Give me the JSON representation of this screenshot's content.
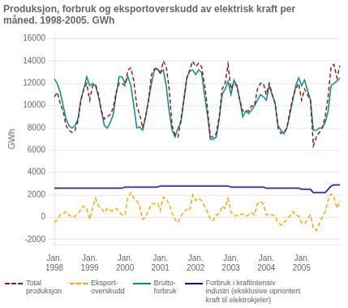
{
  "chart_data": {
    "type": "line",
    "title": "Produksjon, forbruk og eksportoverskudd av elektrisk kraft per\nmåned. 1998-2005. GWh",
    "ylabel": "GWh",
    "categories": [
      "Jan.\n1998",
      null,
      null,
      null,
      null,
      null,
      null,
      null,
      null,
      null,
      null,
      null,
      "Jan.\n1999",
      null,
      null,
      null,
      null,
      null,
      null,
      null,
      null,
      null,
      null,
      null,
      "Jan.\n2000",
      null,
      null,
      null,
      null,
      null,
      null,
      null,
      null,
      null,
      null,
      null,
      "Jan.\n2001",
      null,
      null,
      null,
      null,
      null,
      null,
      null,
      null,
      null,
      null,
      null,
      "Jan.\n2002",
      null,
      null,
      null,
      null,
      null,
      null,
      null,
      null,
      null,
      null,
      null,
      "Jan.\n2003",
      null,
      null,
      null,
      null,
      null,
      null,
      null,
      null,
      null,
      null,
      null,
      "Jan.\n2004",
      null,
      null,
      null,
      null,
      null,
      null,
      null,
      null,
      null,
      null,
      null,
      "Jan.\n2005",
      null,
      null,
      null,
      null,
      null,
      null,
      null,
      null,
      null,
      null,
      null,
      null,
      null
    ],
    "series": [
      {
        "name": "Total\nproduksjon",
        "color": "#8B1A1A",
        "line_style": "dashed",
        "values": [
          10800,
          11200,
          10200,
          9500,
          8200,
          7800,
          7600,
          7800,
          8600,
          10500,
          11500,
          12000,
          10500,
          11800,
          11900,
          11000,
          9500,
          8800,
          9000,
          9200,
          9800,
          11200,
          12000,
          12000,
          11800,
          13200,
          13400,
          12200,
          10000,
          9200,
          8000,
          9000,
          10500,
          12800,
          13300,
          13400,
          12800,
          14000,
          13500,
          11500,
          8200,
          7400,
          7200,
          8800,
          10500,
          12500,
          13200,
          14000,
          13500,
          13800,
          13500,
          12000,
          9800,
          7200,
          7200,
          7500,
          9000,
          11500,
          12000,
          13700,
          11500,
          12000,
          11800,
          10500,
          9500,
          9600,
          9500,
          10000,
          10000,
          11500,
          12000,
          12000,
          11000,
          12000,
          11000,
          10200,
          8000,
          7500,
          7600,
          8000,
          9500,
          10700,
          11500,
          12000,
          10500,
          11500,
          11000,
          10500,
          6400,
          7200,
          7600,
          8000,
          9000,
          10800,
          13500,
          13700,
          12500,
          13600
        ]
      },
      {
        "name": "Eksport-\noverskudd",
        "color": "#FFA500",
        "line_style": "dashed",
        "values": [
          -500,
          -200,
          200,
          300,
          500,
          200,
          0,
          100,
          300,
          700,
          1000,
          800,
          -200,
          800,
          1700,
          1000,
          800,
          400,
          800,
          600,
          600,
          800,
          500,
          200,
          200,
          1800,
          2200,
          1700,
          1500,
          1000,
          -200,
          0,
          600,
          1200,
          1200,
          1300,
          600,
          1800,
          1600,
          1200,
          400,
          -200,
          -500,
          100,
          500,
          700,
          600,
          2000,
          1500,
          1700,
          1500,
          1000,
          500,
          -200,
          -300,
          200,
          300,
          1000,
          800,
          1700,
          500,
          100,
          200,
          200,
          300,
          100,
          200,
          400,
          200,
          1200,
          1400,
          1200,
          200,
          300,
          200,
          100,
          -500,
          -700,
          -500,
          -200,
          100,
          500,
          200,
          100,
          -500,
          -600,
          -200,
          200,
          -1000,
          -1200,
          -600,
          0,
          500,
          1500,
          2100,
          1800,
          800,
          1500
        ]
      },
      {
        "name": "Brutto-\nforbruk",
        "color": "#008B8B",
        "line_style": "solid",
        "values": [
          12400,
          12000,
          11200,
          10000,
          8800,
          8200,
          8000,
          8200,
          8800,
          10500,
          11500,
          12600,
          11800,
          12000,
          11800,
          10800,
          9500,
          8200,
          8000,
          8500,
          9200,
          11000,
          12600,
          12600,
          12000,
          12600,
          11800,
          10000,
          8000,
          8100,
          7800,
          9000,
          10500,
          12000,
          13200,
          13300,
          13000,
          13200,
          11800,
          9500,
          7800,
          7200,
          8000,
          8500,
          10500,
          12500,
          13100,
          13200,
          12800,
          13200,
          13000,
          11000,
          9200,
          7000,
          7000,
          7200,
          8800,
          11000,
          11500,
          12200,
          11000,
          12300,
          11800,
          10500,
          9000,
          9500,
          9300,
          9600,
          10000,
          10500,
          11000,
          10800,
          10500,
          11800,
          11000,
          10200,
          8200,
          7800,
          7500,
          8000,
          9200,
          10500,
          11800,
          12500,
          11800,
          12300,
          11400,
          10500,
          7800,
          7800,
          8000,
          8000,
          8500,
          9500,
          11800,
          12000,
          12200,
          12500
        ]
      },
      {
        "name": "Forbruk i kraftintensiv\nindustri (eksklusive uprioritert\nkraft til elektrokjeler)",
        "color": "#00008B",
        "line_style": "solid",
        "values": [
          2600,
          2600,
          2600,
          2600,
          2600,
          2600,
          2600,
          2600,
          2600,
          2600,
          2600,
          2600,
          2600,
          2600,
          2600,
          2600,
          2600,
          2600,
          2600,
          2600,
          2600,
          2600,
          2600,
          2600,
          2700,
          2700,
          2700,
          2700,
          2700,
          2700,
          2700,
          2700,
          2700,
          2700,
          2700,
          2700,
          2800,
          2800,
          2800,
          2800,
          2800,
          2800,
          2800,
          2800,
          2800,
          2800,
          2800,
          2800,
          2800,
          2800,
          2800,
          2800,
          2800,
          2800,
          2800,
          2800,
          2800,
          2800,
          2800,
          2800,
          2700,
          2700,
          2700,
          2700,
          2700,
          2700,
          2700,
          2700,
          2700,
          2700,
          2700,
          2700,
          2600,
          2600,
          2600,
          2600,
          2600,
          2600,
          2600,
          2600,
          2600,
          2600,
          2600,
          2600,
          2500,
          2500,
          2500,
          2500,
          2200,
          2200,
          2200,
          2200,
          2200,
          2500,
          2800,
          2900,
          2900,
          2900
        ]
      }
    ],
    "ylim": [
      -2500,
      16500
    ],
    "yticks": [
      -2000,
      0,
      2000,
      4000,
      6000,
      8000,
      10000,
      12000,
      14000,
      16000
    ],
    "grid": "y",
    "legend": "bottom"
  }
}
